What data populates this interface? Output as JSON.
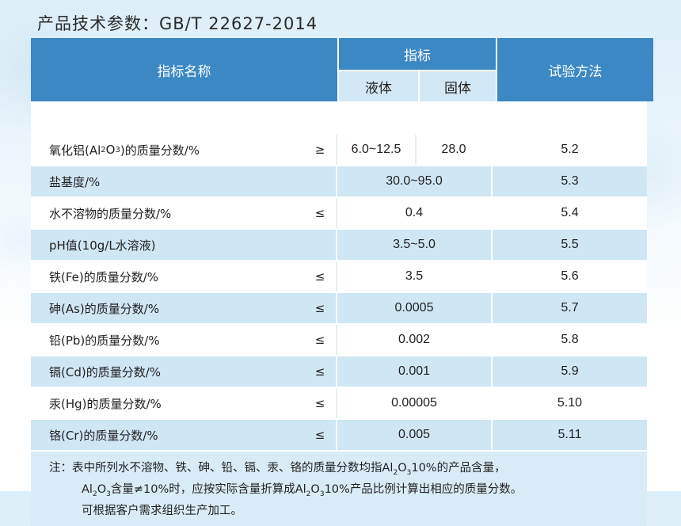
{
  "page": {
    "title": "产品技术参数：GB/T 22627-2014"
  },
  "table": {
    "headers": {
      "name": "指标名称",
      "indicator": "指标",
      "liquid": "液体",
      "solid": "固体",
      "method": "试验方法"
    },
    "rows": [
      {
        "name_pre": "氧化铝(Al",
        "sub1": "2",
        "mid": "O",
        "sub2": "3",
        "name_post": ")的质量分数/%",
        "symbol": "≥",
        "liquid": "6.0~12.5",
        "solid": "28.0",
        "method": "5.2"
      },
      {
        "name": "盐基度/%",
        "symbol": "",
        "value": "30.0~95.0",
        "method": "5.3"
      },
      {
        "name": "水不溶物的质量分数/%",
        "symbol": "≤",
        "value": "0.4",
        "method": "5.4"
      },
      {
        "name": "pH值(10g/L水溶液)",
        "symbol": "",
        "value": "3.5~5.0",
        "method": "5.5"
      },
      {
        "name": "铁(Fe)的质量分数/%",
        "symbol": "≤",
        "value": "3.5",
        "method": "5.6"
      },
      {
        "name": "砷(As)的质量分数/%",
        "symbol": "≤",
        "value": "0.0005",
        "method": "5.7"
      },
      {
        "name": "铅(Pb)的质量分数/%",
        "symbol": "≤",
        "value": "0.002",
        "method": "5.8"
      },
      {
        "name": "镉(Cd)的质量分数/%",
        "symbol": "≤",
        "value": "0.001",
        "method": "5.9"
      },
      {
        "name": "汞(Hg)的质量分数/%",
        "symbol": "≤",
        "value": "0.00005",
        "method": "5.10"
      },
      {
        "name": "铬(Cr)的质量分数/%",
        "symbol": "≤",
        "value": "0.005",
        "method": "5.11"
      }
    ],
    "note": {
      "line1_a": "注：表中所列水不溶物、铁、砷、铅、镉、汞、铬的质量分数均指Al",
      "line1_s1": "2",
      "line1_b": "O",
      "line1_s2": "3",
      "line1_c": "10%的产品含量，",
      "line2_a": "Al",
      "line2_s1": "2",
      "line2_b": "O",
      "line2_s2": "3",
      "line2_c": "含量≠10%时，应按实际含量折算成Al",
      "line2_s3": "2",
      "line2_d": "O",
      "line2_s4": "3",
      "line2_e": "10%产品比例计算出相应的质量分数。",
      "line3": "可根据客户需求组织生产加工。"
    }
  }
}
